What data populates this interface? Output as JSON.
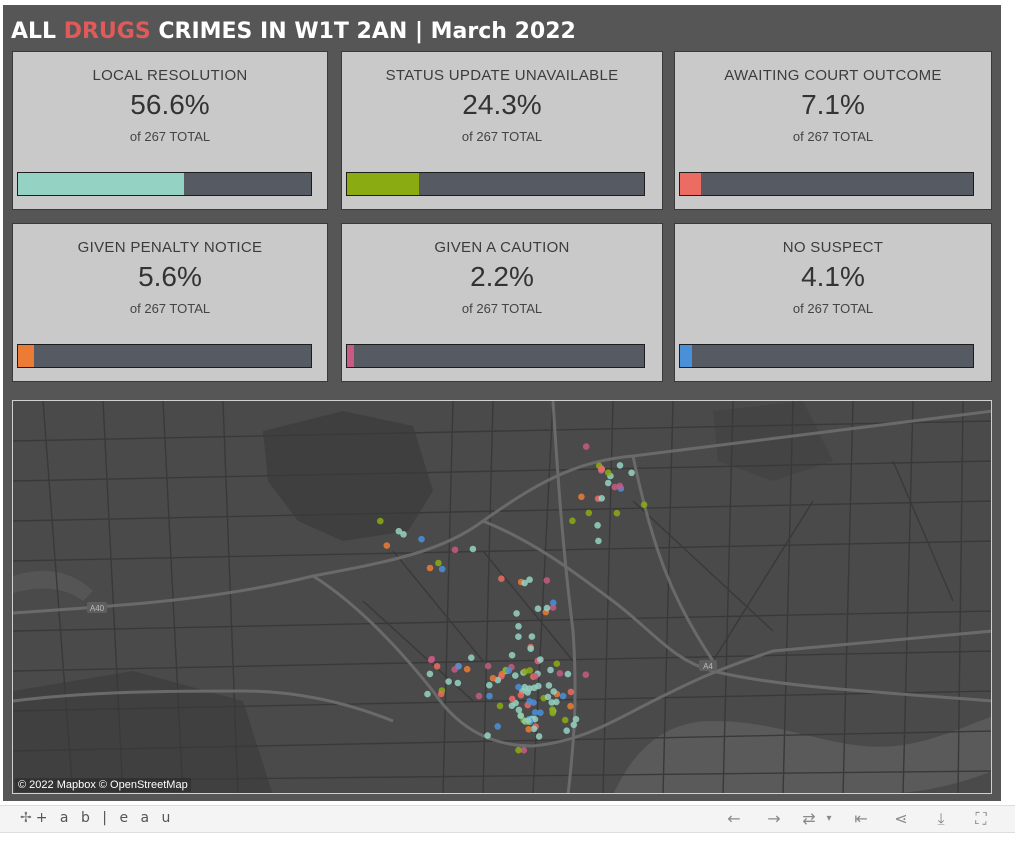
{
  "title": {
    "prefix": "ALL ",
    "accent": "DRUGS",
    "suffix": " CRIMES IN W1T 2AN | March 2022",
    "accent_color": "#e05a5a"
  },
  "cards": [
    {
      "label": "LOCAL RESOLUTION",
      "value": "56.6%",
      "sub": "of 267 TOTAL",
      "fraction": 0.566,
      "color": "#94d2c3"
    },
    {
      "label": "STATUS UPDATE UNAVAILABLE",
      "value": "24.3%",
      "sub": "of 267 TOTAL",
      "fraction": 0.243,
      "color": "#8bab12"
    },
    {
      "label": "AWAITING COURT OUTCOME",
      "value": "7.1%",
      "sub": "of 267 TOTAL",
      "fraction": 0.071,
      "color": "#ec6b63"
    },
    {
      "label": "GIVEN PENALTY NOTICE",
      "value": "5.6%",
      "sub": "of 267 TOTAL",
      "fraction": 0.056,
      "color": "#ec7b35"
    },
    {
      "label": "GIVEN A CAUTION",
      "value": "2.2%",
      "sub": "of 267 TOTAL",
      "fraction": 0.022,
      "color": "#c75b84"
    },
    {
      "label": "NO SUSPECT",
      "value": "4.1%",
      "sub": "of 267 TOTAL",
      "fraction": 0.041,
      "color": "#4a90d9"
    }
  ],
  "map": {
    "attribution": "© 2022 Mapbox  © OpenStreetMap",
    "road_labels": [
      "A40",
      "A4"
    ]
  },
  "footer": {
    "logo_text": "+ a b | e a u",
    "logo_mark": "✢",
    "icons": [
      "undo-icon",
      "redo-icon",
      "revert-icon",
      "reset-icon",
      "share-icon",
      "download-icon",
      "fullscreen-icon"
    ]
  }
}
